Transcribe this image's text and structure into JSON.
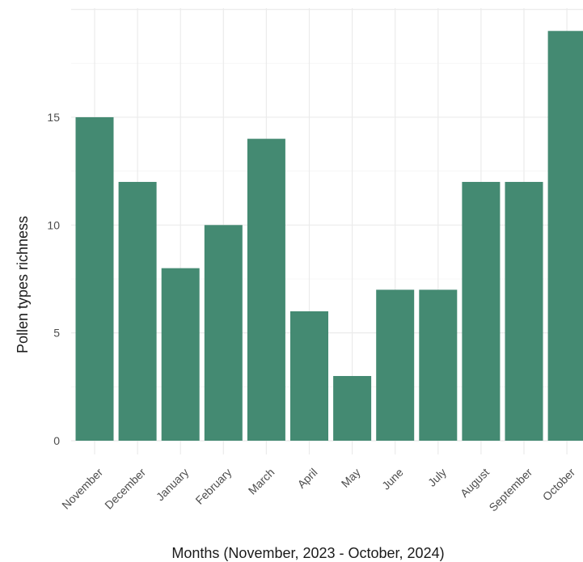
{
  "chart_data": {
    "type": "bar",
    "title": "",
    "xlabel": "Months (November, 2023 - October, 2024)",
    "ylabel": "Pollen types richness",
    "categories": [
      "November",
      "December",
      "January",
      "February",
      "March",
      "April",
      "May",
      "June",
      "July",
      "August",
      "September",
      "October"
    ],
    "values": [
      15,
      12,
      8,
      10,
      14,
      6,
      3,
      7,
      7,
      12,
      12,
      19
    ],
    "yticks": [
      0,
      5,
      10,
      15
    ],
    "ylim": [
      0,
      20
    ],
    "grid": true,
    "legend": "none",
    "bar_color": "#448a72"
  }
}
